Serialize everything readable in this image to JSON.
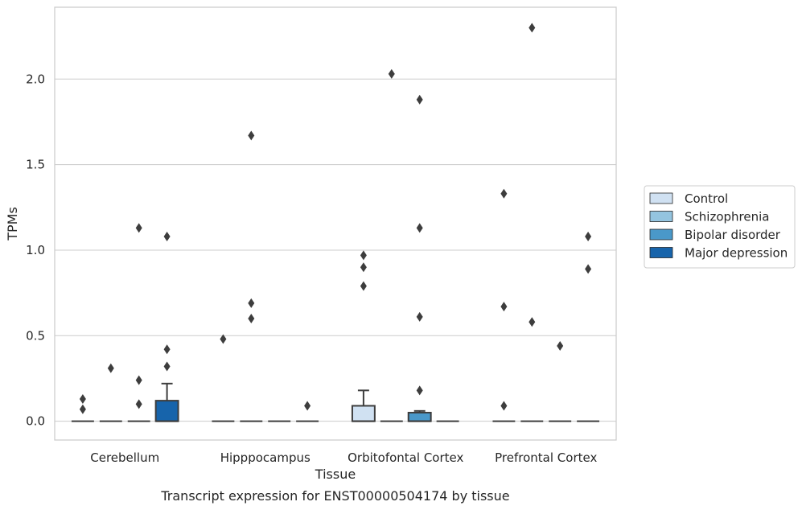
{
  "chart_data": {
    "type": "boxplot",
    "title": "",
    "caption": "Transcript expression for ENST00000504174 by tissue",
    "xlabel": "Tissue",
    "ylabel": "TPMs",
    "ylim": [
      -0.11,
      2.42
    ],
    "yticks": [
      "0.0",
      "0.5",
      "1.0",
      "1.5",
      "2.0"
    ],
    "grid": "horizontal",
    "legend_position": "right",
    "categories": [
      "Cerebellum",
      "Hipppocampus",
      "Orbitofontal Cortex",
      "Prefrontal Cortex"
    ],
    "series": [
      {
        "name": "Control",
        "color": "#d0e1f2",
        "boxes": [
          {
            "q1": 0,
            "median": 0,
            "q3": 0,
            "whislo": 0,
            "whishi": 0,
            "fliers": [
              0.07,
              0.13
            ]
          },
          {
            "q1": 0,
            "median": 0,
            "q3": 0,
            "whislo": 0,
            "whishi": 0,
            "fliers": [
              0.48
            ]
          },
          {
            "q1": 0,
            "median": 0,
            "q3": 0.09,
            "whislo": 0,
            "whishi": 0.18,
            "fliers": [
              0.79,
              0.9,
              0.97
            ]
          },
          {
            "q1": 0,
            "median": 0,
            "q3": 0,
            "whislo": 0,
            "whishi": 0,
            "fliers": [
              0.09,
              0.67,
              1.33
            ]
          }
        ]
      },
      {
        "name": "Schizophrenia",
        "color": "#94c4df",
        "boxes": [
          {
            "q1": 0,
            "median": 0,
            "q3": 0,
            "whislo": 0,
            "whishi": 0,
            "fliers": [
              0.31
            ]
          },
          {
            "q1": 0,
            "median": 0,
            "q3": 0,
            "whislo": 0,
            "whishi": 0,
            "fliers": [
              0.6,
              0.69,
              1.67
            ]
          },
          {
            "q1": 0,
            "median": 0,
            "q3": 0,
            "whislo": 0,
            "whishi": 0,
            "fliers": [
              2.03
            ]
          },
          {
            "q1": 0,
            "median": 0,
            "q3": 0,
            "whislo": 0,
            "whishi": 0,
            "fliers": [
              0.58,
              2.3
            ]
          }
        ]
      },
      {
        "name": "Bipolar disorder",
        "color": "#4a98c9",
        "boxes": [
          {
            "q1": 0,
            "median": 0,
            "q3": 0,
            "whislo": 0,
            "whishi": 0,
            "fliers": [
              0.1,
              0.24,
              1.13
            ]
          },
          {
            "q1": 0,
            "median": 0,
            "q3": 0,
            "whislo": 0,
            "whishi": 0,
            "fliers": []
          },
          {
            "q1": 0,
            "median": 0,
            "q3": 0.05,
            "whislo": 0,
            "whishi": 0.06,
            "fliers": [
              0.18,
              0.61,
              1.13,
              1.88
            ]
          },
          {
            "q1": 0,
            "median": 0,
            "q3": 0,
            "whislo": 0,
            "whishi": 0,
            "fliers": [
              0.44
            ]
          }
        ]
      },
      {
        "name": "Major depression",
        "color": "#1764ab",
        "boxes": [
          {
            "q1": 0,
            "median": 0,
            "q3": 0.12,
            "whislo": 0,
            "whishi": 0.22,
            "fliers": [
              0.32,
              0.42,
              1.08
            ]
          },
          {
            "q1": 0,
            "median": 0,
            "q3": 0,
            "whislo": 0,
            "whishi": 0,
            "fliers": [
              0.09
            ]
          },
          {
            "q1": 0,
            "median": 0,
            "q3": 0,
            "whislo": 0,
            "whishi": 0,
            "fliers": []
          },
          {
            "q1": 0,
            "median": 0,
            "q3": 0,
            "whislo": 0,
            "whishi": 0,
            "fliers": [
              0.89,
              1.08
            ]
          }
        ]
      }
    ]
  }
}
